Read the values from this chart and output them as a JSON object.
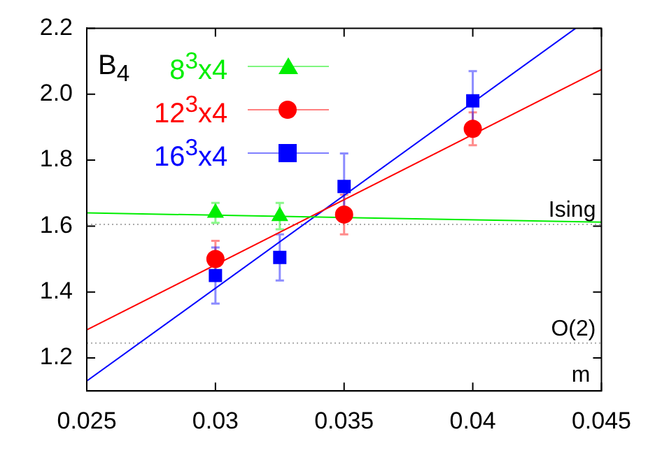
{
  "chart_data": {
    "type": "scatter",
    "legend_title": "B$_{4}$",
    "x": [
      0.03,
      0.0325,
      0.035,
      0.04
    ],
    "series": [
      {
        "name": "8$^{3}$x4",
        "color": "#00ee00",
        "marker": "triangle",
        "values": [
          1.64,
          1.63,
          null,
          null
        ],
        "errors": [
          0.03,
          0.04,
          null,
          null
        ]
      },
      {
        "name": "12$^{3}$x4",
        "color": "#ff0000",
        "marker": "circle",
        "values": [
          1.5,
          null,
          1.635,
          1.895
        ],
        "errors": [
          0.055,
          null,
          0.06,
          0.05
        ]
      },
      {
        "name": "16$^{3}$x4",
        "color": "#0000ff",
        "marker": "square",
        "values": [
          1.45,
          1.505,
          1.72,
          1.98
        ],
        "errors": [
          0.085,
          0.07,
          0.1,
          0.09
        ]
      },
      {
        "type": "line",
        "color": "#00ee00",
        "x": [
          0.025,
          0.045
        ],
        "values": [
          1.64,
          1.612
        ]
      },
      {
        "type": "line",
        "color": "#ff0000",
        "x": [
          0.025,
          0.045
        ],
        "values": [
          1.285,
          2.075
        ]
      },
      {
        "type": "line",
        "color": "#0000ff",
        "x": [
          0.025,
          0.044
        ],
        "values": [
          1.13,
          2.2
        ]
      }
    ],
    "xlim": [
      0.025,
      0.045
    ],
    "xticks": [
      0.025,
      0.03,
      0.035,
      0.04,
      0.045
    ],
    "ylim": [
      1.1,
      2.2
    ],
    "yticks": [
      1.2,
      1.4,
      1.6,
      1.8,
      {
        "value": 2.0,
        "label": "2.0"
      },
      2.2
    ],
    "ref_lines": [
      {
        "axis": "y",
        "value": 1.605,
        "label": "Ising",
        "color": "#aaaaaa",
        "line_style": "dotted"
      },
      {
        "axis": "y",
        "value": 1.245,
        "label": "O(2)",
        "color": "#aaaaaa",
        "line_style": "dotted"
      }
    ],
    "annotations": [
      "m"
    ],
    "grid": false,
    "legend": "top left"
  }
}
